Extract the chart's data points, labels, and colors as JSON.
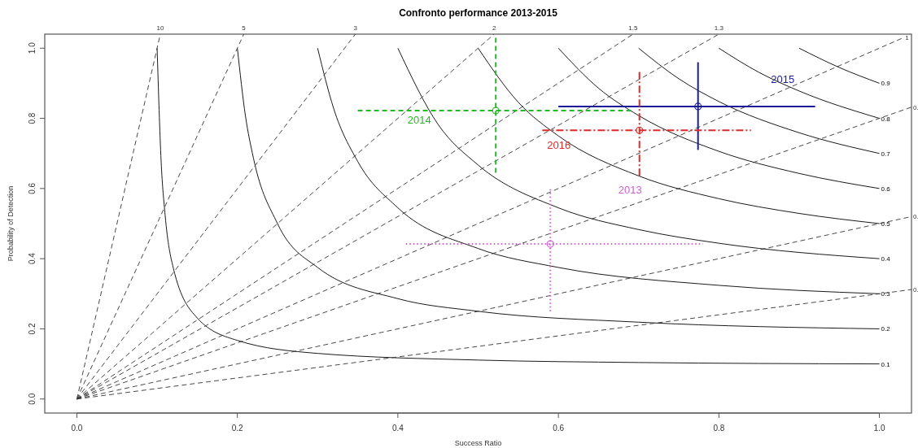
{
  "chart_data": {
    "type": "line",
    "title": "Confronto performance 2013-2015",
    "xlabel": "Success Ratio",
    "ylabel": "Probability of Detection",
    "xlim": [
      -0.04,
      1.04
    ],
    "ylim": [
      -0.04,
      1.04
    ],
    "xticks": [
      {
        "value": 0,
        "label": "0.0"
      },
      {
        "value": 0.2,
        "label": "0.2"
      },
      {
        "value": 0.4,
        "label": "0.4"
      },
      {
        "value": 0.6,
        "label": "0.6"
      },
      {
        "value": 0.8,
        "label": "0.8"
      },
      {
        "value": 1,
        "label": "1.0"
      }
    ],
    "yticks": [
      {
        "value": 0,
        "label": "0.0"
      },
      {
        "value": 0.2,
        "label": "0.2"
      },
      {
        "value": 0.4,
        "label": "0.4"
      },
      {
        "value": 0.6,
        "label": "0.6"
      },
      {
        "value": 0.8,
        "label": "0.8"
      },
      {
        "value": 1,
        "label": "1.0"
      }
    ],
    "series": [
      {
        "name": "0.1",
        "color": "#000000",
        "line_style": "solid",
        "x": [
          0.1,
          0.105,
          0.11,
          0.12,
          0.15,
          0.2,
          0.3,
          0.5,
          0.7,
          1.0
        ],
        "values": [
          1,
          0.678,
          0.524,
          0.375,
          0.231,
          0.167,
          0.13,
          0.111,
          0.104,
          0.1
        ]
      },
      {
        "name": "0.2",
        "color": "#000000",
        "line_style": "solid",
        "x": [
          0.2,
          0.21,
          0.22,
          0.25,
          0.3,
          0.4,
          0.5,
          0.7,
          1.0
        ],
        "values": [
          1,
          0.808,
          0.687,
          0.5,
          0.375,
          0.286,
          0.25,
          0.219,
          0.2
        ]
      },
      {
        "name": "0.3",
        "color": "#000000",
        "line_style": "solid",
        "x": [
          0.3,
          0.32,
          0.35,
          0.4,
          0.5,
          0.6,
          0.8,
          1.0
        ],
        "values": [
          1,
          0.828,
          0.677,
          0.545,
          0.429,
          0.375,
          0.324,
          0.3
        ]
      },
      {
        "name": "0.4",
        "color": "#000000",
        "line_style": "solid",
        "x": [
          0.4,
          0.45,
          0.5,
          0.6,
          0.7,
          0.8,
          1.0
        ],
        "values": [
          1,
          0.783,
          0.667,
          0.545,
          0.483,
          0.444,
          0.4
        ]
      },
      {
        "name": "0.5",
        "color": "#000000",
        "line_style": "solid",
        "x": [
          0.5,
          0.55,
          0.6,
          0.7,
          0.8,
          0.9,
          1.0
        ],
        "values": [
          1,
          0.846,
          0.75,
          0.636,
          0.571,
          0.529,
          0.5
        ]
      },
      {
        "name": "0.6",
        "color": "#000000",
        "line_style": "solid",
        "x": [
          0.6,
          0.65,
          0.7,
          0.8,
          0.9,
          1.0
        ],
        "values": [
          1,
          0.886,
          0.808,
          0.706,
          0.643,
          0.6
        ]
      },
      {
        "name": "0.7",
        "color": "#000000",
        "line_style": "solid",
        "x": [
          0.7,
          0.75,
          0.8,
          0.9,
          1.0
        ],
        "values": [
          1,
          0.913,
          0.848,
          0.759,
          0.7
        ]
      },
      {
        "name": "0.8",
        "color": "#000000",
        "line_style": "solid",
        "x": [
          0.8,
          0.85,
          0.9,
          1.0
        ],
        "values": [
          1,
          0.931,
          0.878,
          0.8
        ]
      },
      {
        "name": "0.9",
        "color": "#000000",
        "line_style": "solid",
        "x": [
          0.9,
          0.95,
          1.0
        ],
        "values": [
          1,
          0.945,
          0.9
        ]
      },
      {
        "name": "10",
        "color": "#333333",
        "line_style": "dashed",
        "x": [
          0,
          0.104
        ],
        "values": [
          0,
          1.04
        ]
      },
      {
        "name": "5",
        "color": "#333333",
        "line_style": "dashed",
        "x": [
          0,
          0.208
        ],
        "values": [
          0,
          1.04
        ]
      },
      {
        "name": "3",
        "color": "#333333",
        "line_style": "dashed",
        "x": [
          0,
          0.347
        ],
        "values": [
          0,
          1.04
        ]
      },
      {
        "name": "2",
        "color": "#333333",
        "line_style": "dashed",
        "x": [
          0,
          0.52
        ],
        "values": [
          0,
          1.04
        ]
      },
      {
        "name": "1.5",
        "color": "#333333",
        "line_style": "dashed",
        "x": [
          0,
          0.693
        ],
        "values": [
          0,
          1.04
        ]
      },
      {
        "name": "1.3",
        "color": "#333333",
        "line_style": "dashed",
        "x": [
          0,
          0.8
        ],
        "values": [
          0,
          1.04
        ]
      },
      {
        "name": "1",
        "color": "#333333",
        "line_style": "dashed",
        "x": [
          0,
          1.03
        ],
        "values": [
          0,
          1.03
        ]
      },
      {
        "name": "0.",
        "color": "#333333",
        "line_style": "dashed",
        "x": [
          0,
          1.04
        ],
        "values": [
          0,
          0.832
        ]
      },
      {
        "name": "0.",
        "color": "#333333",
        "line_style": "dashed",
        "x": [
          0,
          1.04
        ],
        "values": [
          0,
          0.52
        ]
      },
      {
        "name": "0.",
        "color": "#333333",
        "line_style": "dashed",
        "x": [
          0,
          1.04
        ],
        "values": [
          0,
          0.312
        ]
      },
      {
        "name": "2013",
        "type": "scatter",
        "marker": "circle",
        "color": "#d05ed0",
        "line_style": "dotted",
        "x": [
          0.59
        ],
        "values": [
          0.442
        ],
        "xerrors": [
          [
            0.41,
            0.78
          ]
        ],
        "errors": [
          [
            0.25,
            0.6
          ]
        ]
      },
      {
        "name": "2014",
        "type": "scatter",
        "marker": "circle",
        "color": "#2ab52a",
        "line_style": "dashed",
        "x": [
          0.522
        ],
        "values": [
          0.822
        ],
        "xerrors": [
          [
            0.35,
            0.69
          ]
        ],
        "errors": [
          [
            0.645,
            1.03
          ]
        ]
      },
      {
        "name": "2015",
        "type": "scatter",
        "marker": "circle",
        "color": "#1c1c9a",
        "line_style": "solid",
        "x": [
          0.774
        ],
        "values": [
          0.834
        ],
        "xerrors": [
          [
            0.6,
            0.92
          ]
        ],
        "errors": [
          [
            0.71,
            0.96
          ]
        ]
      },
      {
        "name": "2016",
        "type": "scatter",
        "marker": "circle",
        "color": "#dd2a2a",
        "line_style": "dashdot",
        "x": [
          0.701
        ],
        "values": [
          0.766
        ],
        "xerrors": [
          [
            0.58,
            0.84
          ]
        ],
        "errors": [
          [
            0.636,
            0.932
          ]
        ]
      }
    ]
  }
}
